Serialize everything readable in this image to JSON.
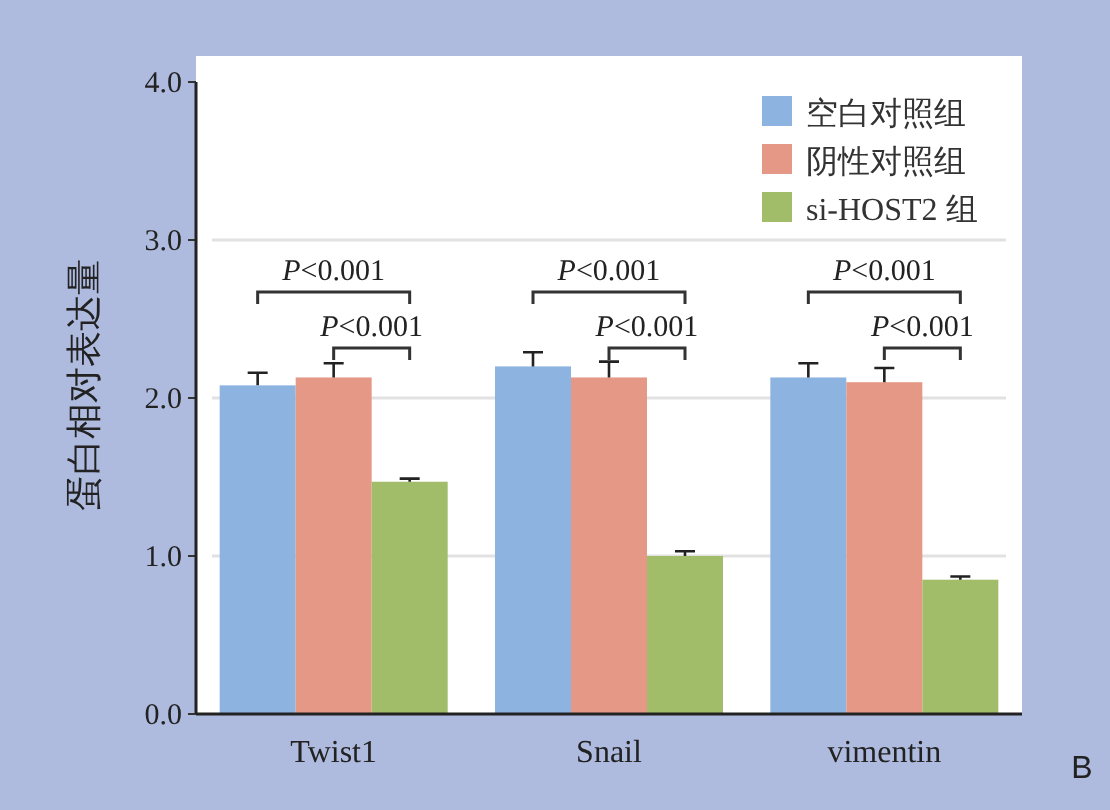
{
  "chart_data": {
    "type": "bar",
    "ylabel": "蛋白相对表达量",
    "categories": [
      "Twist1",
      "Snail",
      "vimentin"
    ],
    "series": [
      {
        "name": "空白对照组",
        "color": "#8db3e0",
        "values": [
          2.08,
          2.2,
          2.13
        ],
        "errors": [
          [
            2.08,
            2.16
          ],
          [
            2.2,
            2.29
          ],
          [
            2.13,
            2.22
          ]
        ]
      },
      {
        "name": "阴性对照组",
        "color": "#e59886",
        "values": [
          2.13,
          2.13,
          2.1
        ],
        "errors": [
          [
            2.13,
            2.22
          ],
          [
            2.13,
            2.23
          ],
          [
            2.1,
            2.19
          ]
        ]
      },
      {
        "name": "si-HOST2 组",
        "color": "#a2bd6a",
        "values": [
          1.47,
          1.0,
          0.85
        ],
        "errors": [
          [
            1.47,
            1.49
          ],
          [
            1.0,
            1.03
          ],
          [
            0.85,
            0.87
          ]
        ]
      }
    ],
    "ylim": [
      0,
      4
    ],
    "yticks": [
      {
        "value": 0,
        "label": "0.0"
      },
      {
        "value": 1,
        "label": "1.0"
      },
      {
        "value": 2,
        "label": "2.0"
      },
      {
        "value": 3,
        "label": "3.0"
      },
      {
        "value": 4,
        "label": "4.0"
      }
    ],
    "grid": "y",
    "legend": "top right",
    "annotations": [
      "P<0.001",
      "P<0.001",
      "P<0.001",
      "P<0.001",
      "P<0.001",
      "P<0.001",
      "B"
    ]
  }
}
